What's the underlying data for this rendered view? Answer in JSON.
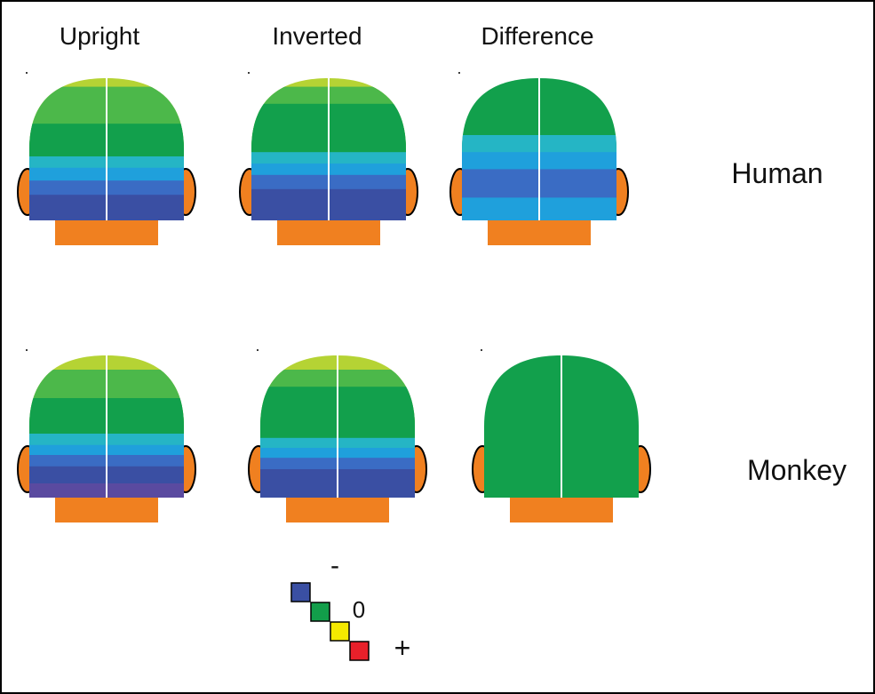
{
  "columns": [
    "Upright",
    "Inverted",
    "Difference"
  ],
  "rows": [
    "Human",
    "Monkey"
  ],
  "legend": {
    "negative": "-",
    "zero": "0",
    "positive": "+"
  }
}
